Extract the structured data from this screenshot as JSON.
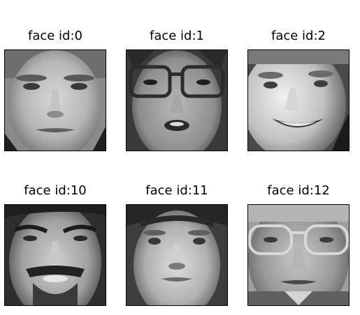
{
  "faces": [
    {
      "title": "face id:0",
      "icon": "face-photo-0"
    },
    {
      "title": "face id:1",
      "icon": "face-photo-1"
    },
    {
      "title": "face id:2",
      "icon": "face-photo-2"
    },
    {
      "title": "face id:10",
      "icon": "face-photo-10"
    },
    {
      "title": "face id:11",
      "icon": "face-photo-11"
    },
    {
      "title": "face id:12",
      "icon": "face-photo-12"
    }
  ],
  "colors": {
    "border": "#000000",
    "background": "#ffffff"
  }
}
